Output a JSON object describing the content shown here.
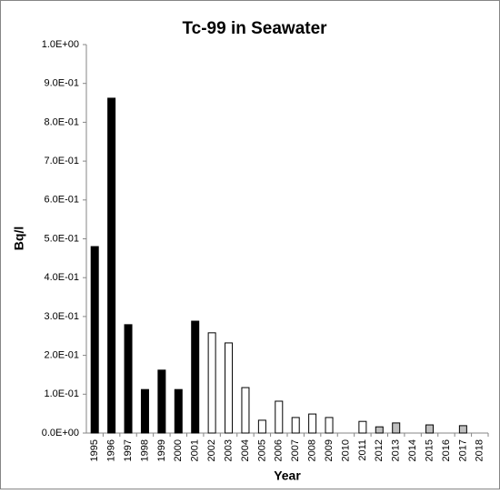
{
  "chart_data": {
    "type": "bar",
    "title": "Tc-99 in Seawater",
    "x_label": "Year",
    "y_label": "Bq/l",
    "categories": [
      "1995",
      "1996",
      "1997",
      "1998",
      "1999",
      "2000",
      "2001",
      "2002",
      "2003",
      "2004",
      "2005",
      "2006",
      "2007",
      "2008",
      "2009",
      "2010",
      "2011",
      "2012",
      "2013",
      "2014",
      "2015",
      "2016",
      "2017",
      "2018"
    ],
    "values": [
      0.48,
      0.862,
      0.279,
      0.112,
      0.162,
      0.112,
      0.288,
      0.258,
      0.232,
      0.117,
      0.033,
      0.082,
      0.04,
      0.049,
      0.04,
      null,
      0.03,
      0.016,
      0.026,
      null,
      0.021,
      null,
      0.019,
      null
    ],
    "colors": [
      "#000000",
      "#000000",
      "#000000",
      "#000000",
      "#000000",
      "#000000",
      "#000000",
      "#ffffff",
      "#ffffff",
      "#ffffff",
      "#ffffff",
      "#ffffff",
      "#ffffff",
      "#ffffff",
      "#ffffff",
      null,
      "#ffffff",
      "#bfbfbf",
      "#bfbfbf",
      null,
      "#bfbfbf",
      null,
      "#bfbfbf",
      null
    ],
    "ylim": [
      0,
      1.0
    ],
    "yticks": [
      {
        "value": 0,
        "label": "0.0E+00"
      },
      {
        "value": 0.1,
        "label": "1.0E-01"
      },
      {
        "value": 0.2,
        "label": "2.0E-01"
      },
      {
        "value": 0.3,
        "label": "3.0E-01"
      },
      {
        "value": 0.4,
        "label": "4.0E-01"
      },
      {
        "value": 0.5,
        "label": "5.0E-01"
      },
      {
        "value": 0.6,
        "label": "6.0E-01"
      },
      {
        "value": 0.7,
        "label": "7.0E-01"
      },
      {
        "value": 0.8,
        "label": "8.0E-01"
      },
      {
        "value": 0.9,
        "label": "9.0E-01"
      },
      {
        "value": 1.0,
        "label": "1.0E+00"
      }
    ],
    "grid": false
  }
}
